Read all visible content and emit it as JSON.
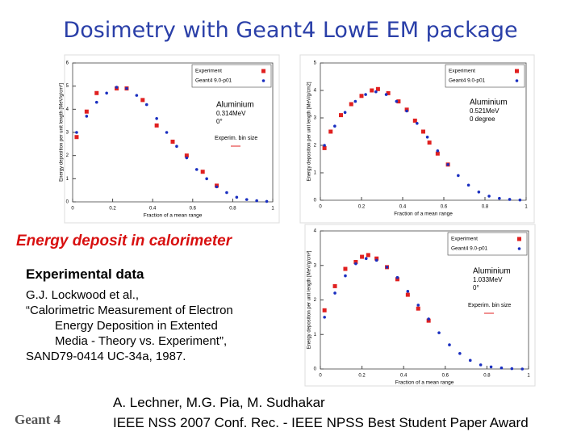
{
  "slide": {
    "title": "Dosimetry with Geant4 LowE EM package",
    "subtitle": "Energy deposit in calorimeter",
    "section_heading": "Experimental data",
    "reference_lines": [
      "G.J. Lockwood et al.,",
      "“Calorimetric Measurement of Electron",
      "Energy Deposition in Extented",
      "Media - Theory vs. Experiment”,",
      "SAND79-0414 UC-34a, 1987."
    ],
    "authors": "A. Lechner, M.G. Pia, M. Sudhakar",
    "citation": "IEEE NSS 2007 Conf. Rec. - IEEE NPSS Best Student Paper Award",
    "logo": "Geant 4"
  },
  "chart_data": [
    {
      "type": "scatter",
      "x_label": "Fraction of a mean range",
      "y_label": "Energy deposition per unit length [MeV/g/cm²]",
      "xlim": [
        0,
        1
      ],
      "xticks": [
        0,
        0.2,
        0.4,
        0.6,
        0.8,
        1
      ],
      "ylim": [
        0,
        6
      ],
      "yticks": [
        0,
        1,
        2,
        3,
        4,
        5,
        6
      ],
      "annotations": [
        "Aluminium",
        "0.314MeV",
        "0°",
        "Experim. bin size"
      ],
      "series": [
        {
          "name": "Experiment",
          "color": "#e02020",
          "marker": "square",
          "x": [
            0.02,
            0.07,
            0.12,
            0.22,
            0.27,
            0.35,
            0.42,
            0.5,
            0.57,
            0.65,
            0.72
          ],
          "values": [
            2.8,
            3.9,
            4.7,
            4.9,
            4.9,
            4.4,
            3.3,
            2.6,
            2.0,
            1.3,
            0.7
          ]
        },
        {
          "name": "Geant4 9.0-p01",
          "color": "#1a2fc0",
          "marker": "circle",
          "x": [
            0.02,
            0.07,
            0.12,
            0.17,
            0.22,
            0.27,
            0.32,
            0.37,
            0.42,
            0.47,
            0.52,
            0.57,
            0.62,
            0.67,
            0.72,
            0.77,
            0.82,
            0.87,
            0.92,
            0.97
          ],
          "values": [
            3.0,
            3.7,
            4.3,
            4.7,
            4.95,
            4.9,
            4.6,
            4.2,
            3.6,
            3.0,
            2.4,
            1.9,
            1.4,
            1.0,
            0.65,
            0.4,
            0.2,
            0.1,
            0.05,
            0.02
          ]
        }
      ]
    },
    {
      "type": "scatter",
      "x_label": "Fraction of a mean range",
      "y_label": "Energy deposition per unit length [MeV/g/cm2]",
      "xlim": [
        0,
        1
      ],
      "xticks": [
        0,
        0.2,
        0.4,
        0.6,
        0.8,
        1
      ],
      "ylim": [
        0,
        5
      ],
      "yticks": [
        0,
        1,
        2,
        3,
        4,
        5
      ],
      "annotations": [
        "Aluminium",
        "0.521MeV",
        "0 degree"
      ],
      "series": [
        {
          "name": "Experiment",
          "color": "#e02020",
          "marker": "square",
          "x": [
            0.02,
            0.05,
            0.1,
            0.15,
            0.2,
            0.25,
            0.28,
            0.33,
            0.38,
            0.42,
            0.46,
            0.5,
            0.53,
            0.57,
            0.62
          ],
          "values": [
            1.9,
            2.5,
            3.1,
            3.5,
            3.8,
            4.0,
            4.05,
            3.9,
            3.6,
            3.3,
            2.9,
            2.5,
            2.1,
            1.7,
            1.3
          ]
        },
        {
          "name": "Geant4 9.0-p01",
          "color": "#1a2fc0",
          "marker": "circle",
          "x": [
            0.02,
            0.07,
            0.12,
            0.17,
            0.22,
            0.27,
            0.32,
            0.37,
            0.42,
            0.47,
            0.52,
            0.57,
            0.62,
            0.67,
            0.72,
            0.77,
            0.82,
            0.87,
            0.92,
            0.97
          ],
          "values": [
            2.0,
            2.7,
            3.2,
            3.6,
            3.85,
            3.95,
            3.85,
            3.6,
            3.25,
            2.8,
            2.3,
            1.8,
            1.3,
            0.9,
            0.55,
            0.3,
            0.15,
            0.07,
            0.03,
            0.01
          ]
        }
      ]
    },
    {
      "type": "scatter",
      "x_label": "Fraction of a mean range",
      "y_label": "Energy deposition per unit length [MeV/g/cm²]",
      "xlim": [
        0,
        1
      ],
      "xticks": [
        0,
        0.2,
        0.4,
        0.6,
        0.8,
        1
      ],
      "ylim": [
        0,
        4
      ],
      "yticks": [
        0,
        1,
        2,
        3,
        4
      ],
      "annotations": [
        "Aluminium",
        "1.033MeV",
        "0°",
        "Experim. bin size"
      ],
      "series": [
        {
          "name": "Experiment",
          "color": "#e02020",
          "marker": "square",
          "x": [
            0.02,
            0.07,
            0.12,
            0.17,
            0.2,
            0.23,
            0.27,
            0.32,
            0.37,
            0.42,
            0.47,
            0.52
          ],
          "values": [
            1.7,
            2.4,
            2.9,
            3.1,
            3.25,
            3.3,
            3.2,
            2.95,
            2.6,
            2.15,
            1.75,
            1.4
          ]
        },
        {
          "name": "Geant4 9.0-p01",
          "color": "#1a2fc0",
          "marker": "circle",
          "x": [
            0.02,
            0.07,
            0.12,
            0.17,
            0.22,
            0.27,
            0.32,
            0.37,
            0.42,
            0.47,
            0.52,
            0.57,
            0.62,
            0.67,
            0.72,
            0.77,
            0.82,
            0.87,
            0.92,
            0.97
          ],
          "values": [
            1.5,
            2.2,
            2.7,
            3.05,
            3.2,
            3.15,
            2.95,
            2.65,
            2.25,
            1.85,
            1.45,
            1.05,
            0.7,
            0.45,
            0.25,
            0.12,
            0.06,
            0.03,
            0.01,
            0.0
          ]
        }
      ]
    }
  ]
}
